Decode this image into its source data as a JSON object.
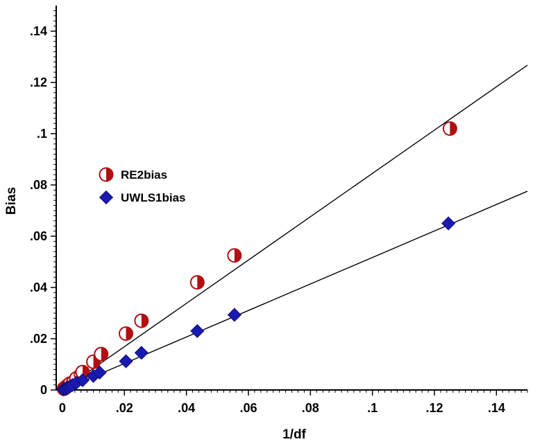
{
  "chart_data": {
    "type": "scatter",
    "xlabel": "1/df",
    "ylabel": "Bias",
    "xlim": [
      -0.002,
      0.15
    ],
    "ylim": [
      0,
      0.15
    ],
    "x_ticks": [
      0,
      0.02,
      0.04,
      0.06,
      0.08,
      0.1,
      0.12,
      0.14
    ],
    "x_tick_labels": [
      "0",
      ".02",
      ".04",
      ".06",
      ".08",
      ".1",
      ".12",
      ".14"
    ],
    "y_ticks": [
      0,
      0.02,
      0.04,
      0.06,
      0.08,
      0.1,
      0.12,
      0.14
    ],
    "y_tick_labels": [
      "0",
      ".02",
      ".04",
      ".06",
      ".08",
      ".1",
      ".12",
      ".14"
    ],
    "grid": false,
    "legend_position": "center-left",
    "series": [
      {
        "name": "RE2bias",
        "marker": "half-filled-circle",
        "color": "#b01010",
        "points": [
          [
            0.0005,
            0.0005
          ],
          [
            0.001,
            0.001
          ],
          [
            0.0015,
            0.0015
          ],
          [
            0.002,
            0.002
          ],
          [
            0.0025,
            0.0025
          ],
          [
            0.0035,
            0.003
          ],
          [
            0.0045,
            0.0045
          ],
          [
            0.006,
            0.006
          ],
          [
            0.0065,
            0.007
          ],
          [
            0.01,
            0.011
          ],
          [
            0.0125,
            0.014
          ],
          [
            0.0205,
            0.022
          ],
          [
            0.0255,
            0.027
          ],
          [
            0.0435,
            0.042
          ],
          [
            0.0555,
            0.0525
          ],
          [
            0.125,
            0.102
          ]
        ],
        "fit_line": {
          "slope": 0.845,
          "intercept": 0
        }
      },
      {
        "name": "UWLS1bias",
        "marker": "diamond",
        "color": "#1a1ab0",
        "points": [
          [
            0.0003,
            0.0002
          ],
          [
            0.0008,
            0.0004
          ],
          [
            0.0012,
            0.0007
          ],
          [
            0.0018,
            0.001
          ],
          [
            0.0025,
            0.0014
          ],
          [
            0.0032,
            0.0019
          ],
          [
            0.0045,
            0.0028
          ],
          [
            0.0065,
            0.0038
          ],
          [
            0.01,
            0.0055
          ],
          [
            0.012,
            0.0068
          ],
          [
            0.0205,
            0.0112
          ],
          [
            0.0255,
            0.0145
          ],
          [
            0.0435,
            0.023
          ],
          [
            0.0555,
            0.0293
          ],
          [
            0.1245,
            0.065
          ]
        ],
        "fit_line": {
          "slope": 0.517,
          "intercept": 0
        }
      }
    ]
  }
}
